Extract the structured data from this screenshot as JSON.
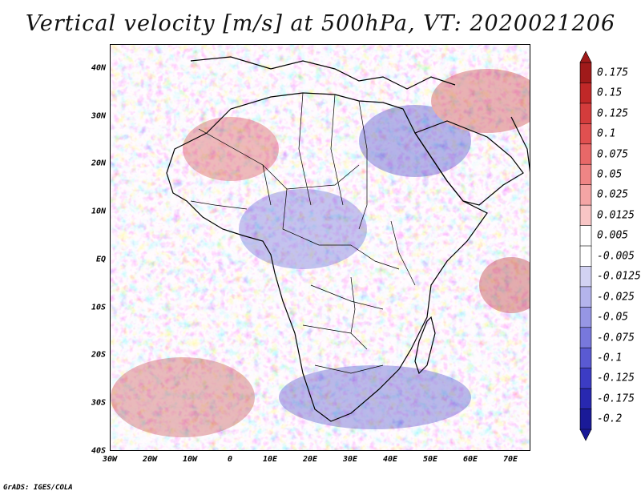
{
  "title": "Vertical velocity [m/s] at 500hPa, VT: 2020021206",
  "credit": "GrADS: IGES/COLA",
  "map": {
    "lat_labels": [
      "40N",
      "30N",
      "20N",
      "10N",
      "EQ",
      "10S",
      "20S",
      "30S",
      "40S"
    ],
    "lon_labels": [
      "30W",
      "20W",
      "10W",
      "0",
      "10E",
      "20E",
      "30E",
      "40E",
      "50E",
      "60E",
      "70E"
    ],
    "lat_range": [
      -40,
      45
    ],
    "lon_range": [
      -30,
      75
    ]
  },
  "colorbar": {
    "labels": [
      "0.175",
      "0.15",
      "0.125",
      "0.1",
      "0.075",
      "0.05",
      "0.025",
      "0.0125",
      "0.005",
      "-0.005",
      "-0.0125",
      "-0.025",
      "-0.05",
      "-0.075",
      "-0.1",
      "-0.125",
      "-0.175",
      "-0.2"
    ],
    "colors": [
      "#a01a1a",
      "#c02828",
      "#d43c3c",
      "#e05050",
      "#e86868",
      "#ef8585",
      "#f4a5a5",
      "#f8c5c5",
      "#ffffff",
      "#ffffff",
      "#d2d2f2",
      "#b4b4ec",
      "#9696e4",
      "#7878dc",
      "#5a5ad2",
      "#3c3cc4",
      "#2828b0",
      "#1a1a98"
    ]
  }
}
